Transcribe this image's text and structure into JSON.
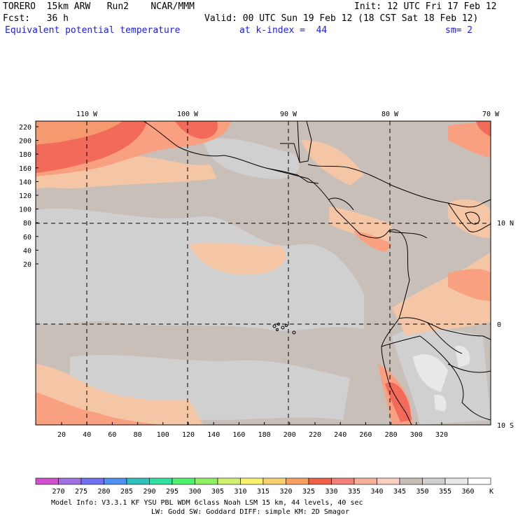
{
  "header": {
    "model": "TORERO  15km ARW   Run2    NCAR/MMM",
    "init": "Init: 12 UTC Fri 17 Feb 12",
    "fcst": "Fcst:   36 h",
    "valid": "Valid: 00 UTC Sun 19 Feb 12 (18 CST Sat 18 Feb 12)",
    "field": "Equivalent potential temperature",
    "level": "at k-index =  44",
    "smooth": "sm= 2"
  },
  "map": {
    "lon_labels": [
      "110 W",
      "100 W",
      "90 W",
      "80 W",
      "70 W"
    ],
    "lat_labels": [
      "10 N",
      "0",
      "10 S"
    ],
    "y_ticks": [
      "220",
      "200",
      "180",
      "160",
      "140",
      "120",
      "100",
      "80",
      "60",
      "40",
      "20"
    ],
    "x_ticks": [
      "20",
      "40",
      "60",
      "80",
      "100",
      "120",
      "140",
      "160",
      "180",
      "200",
      "220",
      "240",
      "260",
      "280",
      "300",
      "320"
    ],
    "colors": {
      "background": "#c8bfb8",
      "low": "#d0d0d0",
      "mid": "#f4c6a6",
      "warm": "#f8a080",
      "hot": "#f26a5a",
      "coast": "#000000"
    }
  },
  "colorbar": {
    "labels": [
      "270",
      "275",
      "280",
      "285",
      "290",
      "295",
      "300",
      "305",
      "310",
      "315",
      "320",
      "325",
      "330",
      "335",
      "340",
      "345",
      "350",
      "355",
      "360"
    ],
    "unit": "K",
    "colors": [
      "#d050d0",
      "#a070e0",
      "#7070f0",
      "#5090f0",
      "#30c0c0",
      "#30e0a0",
      "#50f070",
      "#90f060",
      "#d0f070",
      "#f8f070",
      "#f8d070",
      "#f8a060",
      "#f06048",
      "#f08078",
      "#f4b098",
      "#f8d0c0",
      "#c8bfb8",
      "#d0d0d0",
      "#e8e8e8",
      "#ffffff"
    ]
  },
  "footer": {
    "line1": "Model Info: V3.3.1   KF    YSU PBL  WDM 6class  Noah LSM  15 km,   44 levels,   40 sec",
    "line2": "LW: Godd SW: Goddard DIFF: simple KM: 2D Smagor"
  }
}
